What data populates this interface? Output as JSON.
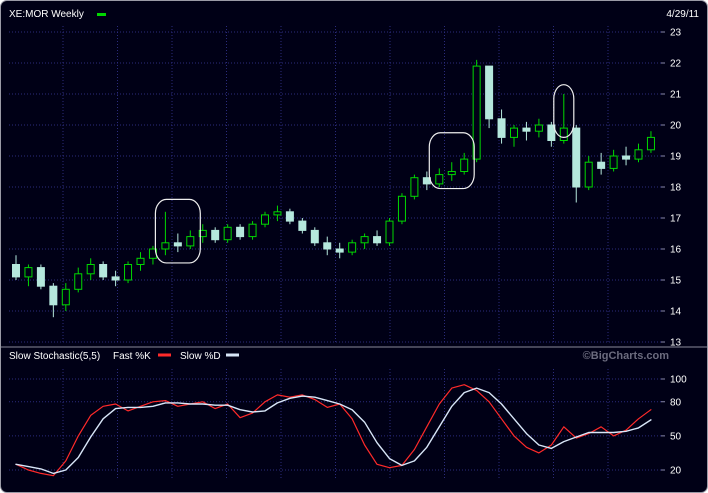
{
  "header": {
    "symbol": "XE:MOR Weekly",
    "date": "4/29/11"
  },
  "watermark": "©BigCharts.com",
  "colors": {
    "background": "#000016",
    "grid": "#2b2b7c",
    "axis_tick": "#8888aa",
    "text": "#ffffff",
    "candle_up": "#00d800",
    "candle_down_fill": "#b5e8dd",
    "annotation": "#eeeeee",
    "fast_k": "#ff2a2a",
    "slow_d": "#d8e6f8",
    "divider": "#8a8a9a",
    "watermark_text": "#6b6b7e"
  },
  "chart_data": [
    {
      "type": "candlestick",
      "title": "XE:MOR Weekly",
      "interval": "Weekly",
      "ylim": [
        13,
        23
      ],
      "y_ticks": [
        23,
        22,
        21,
        20,
        19,
        18,
        17,
        16,
        15,
        14,
        13
      ],
      "grid": true,
      "candles": [
        [
          15.5,
          15.8,
          15.0,
          15.1
        ],
        [
          15.1,
          15.5,
          14.8,
          15.4
        ],
        [
          15.4,
          15.5,
          14.7,
          14.8
        ],
        [
          14.8,
          14.9,
          13.8,
          14.2
        ],
        [
          14.2,
          14.9,
          14.0,
          14.7
        ],
        [
          14.7,
          15.4,
          14.6,
          15.2
        ],
        [
          15.2,
          15.7,
          15.0,
          15.5
        ],
        [
          15.5,
          15.6,
          15.0,
          15.1
        ],
        [
          15.1,
          15.3,
          14.8,
          15.0
        ],
        [
          15.0,
          15.6,
          14.9,
          15.5
        ],
        [
          15.5,
          15.9,
          15.3,
          15.7
        ],
        [
          15.7,
          16.1,
          15.5,
          16.0
        ],
        [
          16.0,
          17.2,
          15.8,
          16.2
        ],
        [
          16.2,
          16.5,
          15.9,
          16.1
        ],
        [
          16.1,
          16.6,
          16.0,
          16.4
        ],
        [
          16.4,
          16.8,
          16.2,
          16.6
        ],
        [
          16.6,
          16.7,
          16.2,
          16.3
        ],
        [
          16.3,
          16.8,
          16.2,
          16.7
        ],
        [
          16.7,
          16.8,
          16.3,
          16.4
        ],
        [
          16.4,
          16.9,
          16.3,
          16.8
        ],
        [
          16.8,
          17.2,
          16.7,
          17.1
        ],
        [
          17.1,
          17.4,
          16.9,
          17.2
        ],
        [
          17.2,
          17.3,
          16.8,
          16.9
        ],
        [
          16.9,
          17.0,
          16.5,
          16.6
        ],
        [
          16.6,
          16.7,
          16.1,
          16.2
        ],
        [
          16.2,
          16.4,
          15.8,
          16.0
        ],
        [
          16.0,
          16.2,
          15.7,
          15.9
        ],
        [
          15.9,
          16.3,
          15.8,
          16.2
        ],
        [
          16.2,
          16.5,
          16.0,
          16.4
        ],
        [
          16.4,
          16.6,
          16.1,
          16.2
        ],
        [
          16.2,
          17.0,
          16.1,
          16.9
        ],
        [
          16.9,
          17.8,
          16.8,
          17.7
        ],
        [
          17.7,
          18.4,
          17.6,
          18.3
        ],
        [
          18.3,
          18.5,
          17.9,
          18.1
        ],
        [
          18.1,
          18.6,
          18.0,
          18.4
        ],
        [
          18.4,
          18.8,
          18.2,
          18.5
        ],
        [
          18.5,
          19.1,
          18.4,
          18.9
        ],
        [
          18.9,
          22.1,
          18.8,
          21.9
        ],
        [
          21.9,
          21.9,
          19.9,
          20.2
        ],
        [
          20.2,
          20.5,
          19.4,
          19.6
        ],
        [
          19.6,
          20.0,
          19.3,
          19.9
        ],
        [
          19.9,
          20.1,
          19.5,
          19.8
        ],
        [
          19.8,
          20.2,
          19.6,
          20.0
        ],
        [
          20.0,
          20.1,
          19.3,
          19.5
        ],
        [
          19.5,
          21.0,
          19.4,
          19.9
        ],
        [
          19.9,
          20.0,
          17.5,
          18.0
        ],
        [
          18.0,
          19.0,
          17.9,
          18.8
        ],
        [
          18.8,
          19.1,
          18.4,
          18.6
        ],
        [
          18.6,
          19.2,
          18.5,
          19.0
        ],
        [
          19.0,
          19.3,
          18.7,
          18.9
        ],
        [
          18.9,
          19.4,
          18.8,
          19.2
        ],
        [
          19.2,
          19.8,
          19.1,
          19.6
        ]
      ],
      "annotations": [
        {
          "from": 12,
          "to": 14,
          "high": 17.6,
          "low": 15.55
        },
        {
          "from": 34,
          "to": 36,
          "high": 19.75,
          "low": 17.95
        },
        {
          "from": 44,
          "to": 44,
          "high": 21.3,
          "low": 19.6
        }
      ]
    },
    {
      "type": "line",
      "title": "Slow Stochastic(5,5)",
      "ylim": [
        20,
        100
      ],
      "y_ticks": [
        100,
        80,
        50,
        20
      ],
      "grid": true,
      "legend_position": "top-left",
      "series": [
        {
          "name": "Fast %K",
          "color": "#ff2a2a",
          "values": [
            25,
            20,
            17,
            15,
            28,
            50,
            68,
            76,
            78,
            72,
            76,
            80,
            81,
            76,
            78,
            80,
            74,
            78,
            66,
            70,
            80,
            86,
            84,
            86,
            82,
            75,
            78,
            65,
            42,
            25,
            22,
            24,
            38,
            58,
            78,
            92,
            95,
            90,
            80,
            65,
            50,
            40,
            35,
            42,
            58,
            48,
            52,
            58,
            50,
            55,
            65,
            73
          ]
        },
        {
          "name": "Slow %D",
          "color": "#d8e6f8",
          "values": [
            25,
            23,
            21,
            17,
            20,
            31,
            49,
            65,
            74,
            75,
            75,
            76,
            79,
            79,
            78,
            78,
            77,
            77,
            73,
            71,
            72,
            79,
            83,
            85,
            84,
            81,
            78,
            73,
            62,
            44,
            30,
            24,
            28,
            40,
            58,
            76,
            88,
            92,
            88,
            78,
            65,
            52,
            42,
            39,
            45,
            49,
            53,
            53,
            53,
            54,
            57,
            64
          ]
        }
      ]
    }
  ]
}
